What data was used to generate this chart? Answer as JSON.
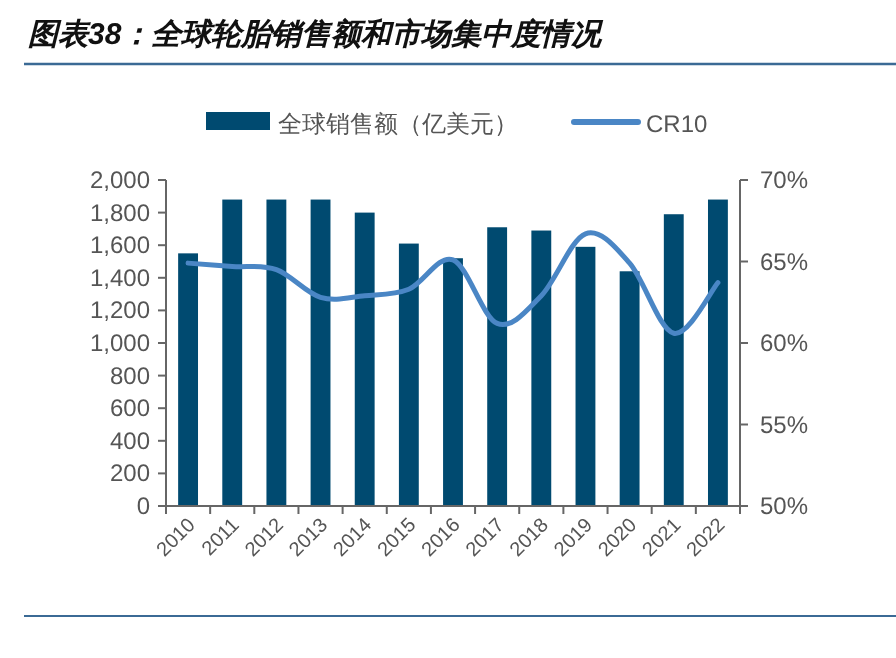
{
  "chart_data": {
    "type": "bar",
    "title": "图表38：全球轮胎销售额和市场集中度情况",
    "categories": [
      "2010",
      "2011",
      "2012",
      "2013",
      "2014",
      "2015",
      "2016",
      "2017",
      "2018",
      "2019",
      "2020",
      "2021",
      "2022"
    ],
    "series": [
      {
        "name": "全球销售额（亿美元）",
        "color": "#004a70",
        "values": [
          1550,
          1880,
          1880,
          1880,
          1800,
          1610,
          1520,
          1710,
          1690,
          1590,
          1440,
          1790,
          1880
        ]
      },
      {
        "name": "CR10",
        "type": "line",
        "axis": "y2",
        "color": "#4a86c5",
        "values": [
          64.9,
          64.7,
          64.5,
          62.8,
          62.9,
          63.3,
          65.1,
          61.2,
          62.9,
          66.7,
          64.9,
          60.6,
          63.7
        ]
      }
    ],
    "ylim": [
      0,
      2000
    ],
    "yticks": [
      0,
      {
        "value": 200,
        "label": "200"
      },
      {
        "value": 400,
        "label": "400"
      },
      {
        "value": 600,
        "label": "600"
      },
      {
        "value": 800,
        "label": "800"
      },
      {
        "value": 1000,
        "label": "1,000"
      },
      {
        "value": 1200,
        "label": "1,200"
      },
      {
        "value": 1400,
        "label": "1,400"
      },
      {
        "value": 1600,
        "label": "1,600"
      },
      {
        "value": 1800,
        "label": "1,800"
      },
      {
        "value": 2000,
        "label": "2,000"
      }
    ],
    "y2lim": [
      50,
      70
    ],
    "y2ticks": [
      {
        "value": 50,
        "label": "50%"
      },
      {
        "value": 55,
        "label": "55%"
      },
      {
        "value": 60,
        "label": "60%"
      },
      {
        "value": 65,
        "label": "65%"
      },
      {
        "value": 70,
        "label": "70%"
      }
    ],
    "legend": "top",
    "grid": false
  }
}
